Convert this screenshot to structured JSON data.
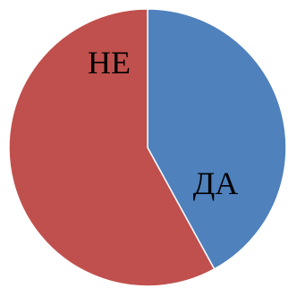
{
  "chart_data": {
    "type": "pie",
    "start_angle": "12 o'clock",
    "direction": "clockwise",
    "slices": [
      {
        "label": "ДА",
        "value": 42,
        "color": "#4F81BD"
      },
      {
        "label": "НЕ",
        "value": 58,
        "color": "#C0504D"
      }
    ]
  }
}
